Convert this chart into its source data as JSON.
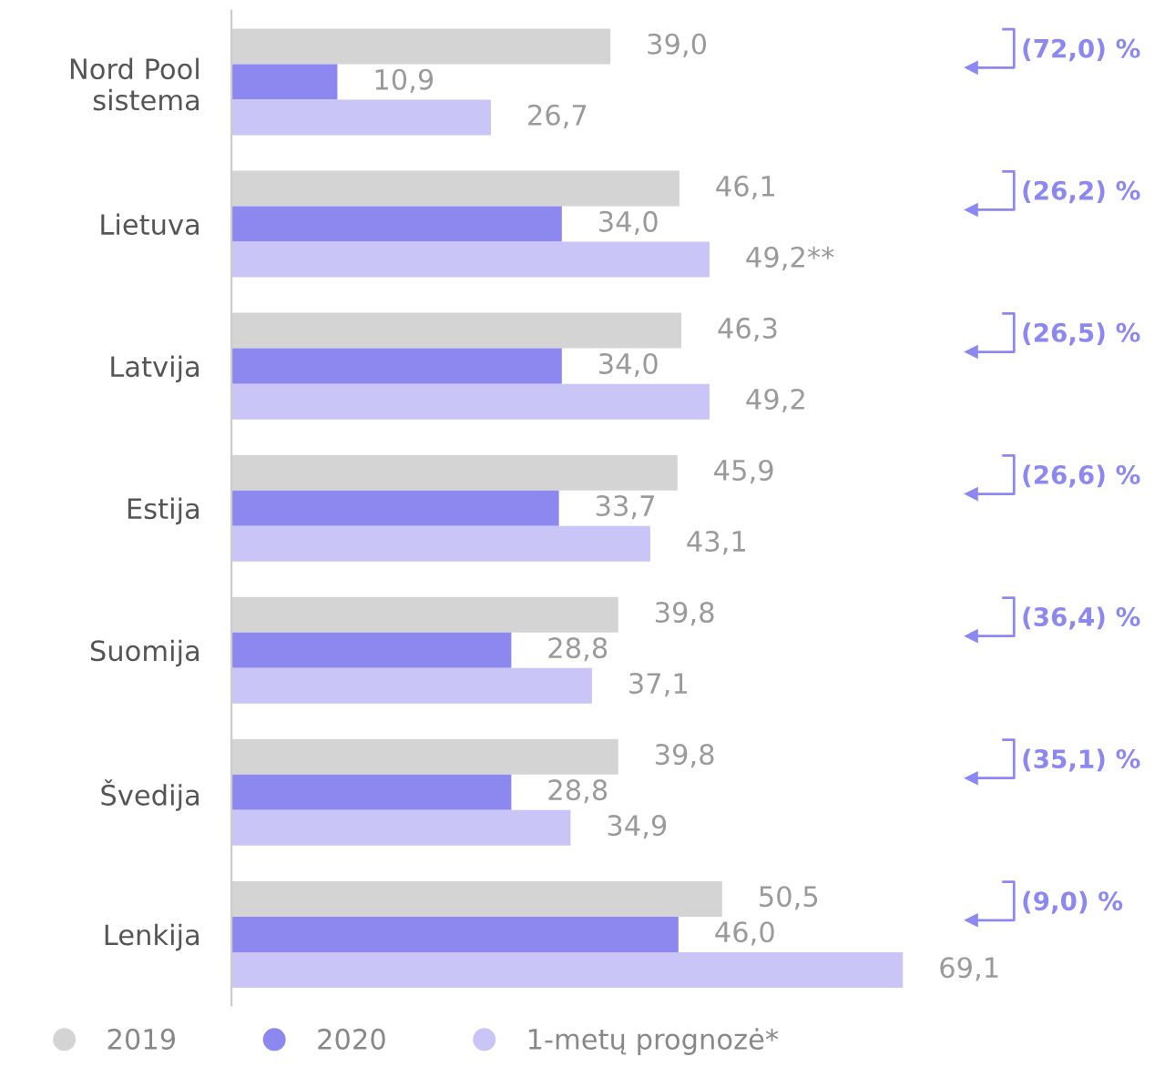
{
  "chart_data": {
    "type": "bar",
    "orientation": "horizontal",
    "categories": [
      "Nord Pool\nsistema",
      "Lietuva",
      "Latvija",
      "Estija",
      "Suomija",
      "Švedija",
      "Lenkija"
    ],
    "series": [
      {
        "name": "2019",
        "color": "#d4d4d4",
        "values": [
          39.0,
          46.1,
          46.3,
          45.9,
          39.8,
          39.8,
          50.5
        ],
        "value_labels": [
          "39,0",
          "46,1",
          "46,3",
          "45,9",
          "39,8",
          "39,8",
          "50,5"
        ]
      },
      {
        "name": "2020",
        "color": "#8d88f0",
        "values": [
          10.9,
          34.0,
          34.0,
          33.7,
          28.8,
          28.8,
          46.0
        ],
        "value_labels": [
          "10,9",
          "34,0",
          "34,0",
          "33,7",
          "28,8",
          "28,8",
          "46,0"
        ]
      },
      {
        "name": "1-metų prognozė*",
        "color": "#c9c5f6",
        "values": [
          26.7,
          49.2,
          49.2,
          43.1,
          37.1,
          34.9,
          69.1
        ],
        "value_labels": [
          "26,7",
          "49,2**",
          "49,2",
          "43,1",
          "37,1",
          "34,9",
          "69,1"
        ]
      }
    ],
    "annotations": [
      "(72,0) %",
      "(26,2) %",
      "(26,5) %",
      "(26,6) %",
      "(36,4) %",
      "(35,1) %",
      "(9,0) %"
    ],
    "legend": "bottom",
    "marker": "circle",
    "grid": false
  }
}
